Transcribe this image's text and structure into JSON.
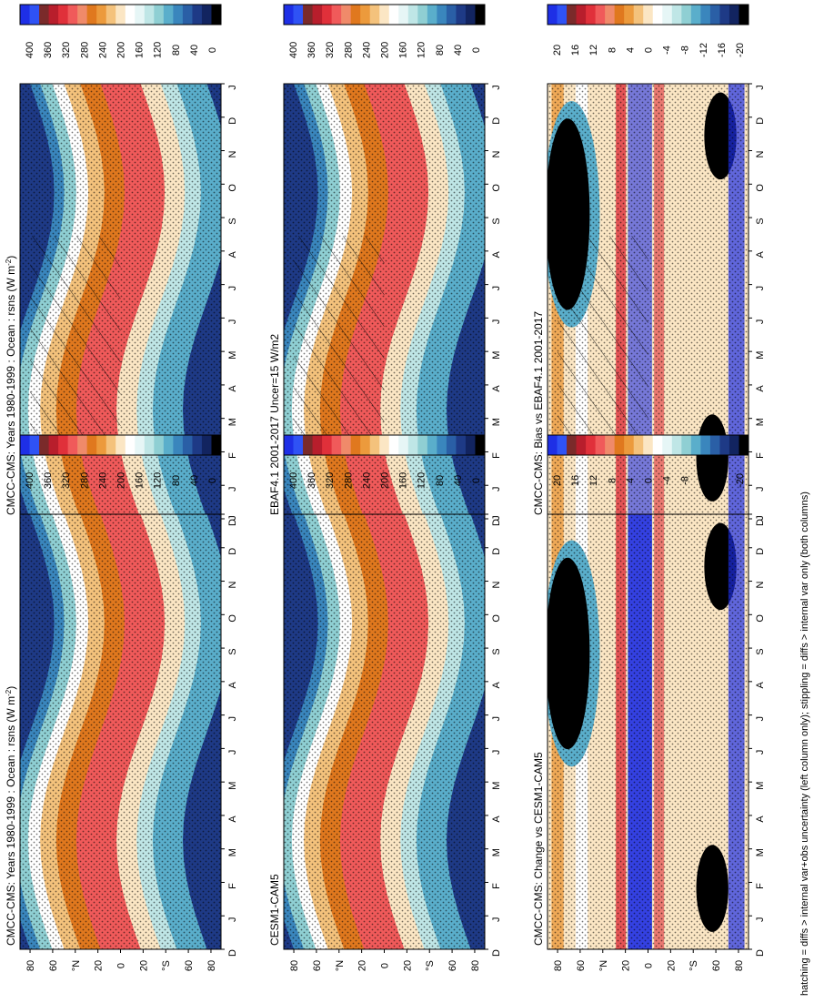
{
  "footnote": "hatching = diffs > internal var+obs uncertainty (left column only); stippling = diffs > internal var only (both columns)",
  "months": [
    "D",
    "J",
    "F",
    "M",
    "A",
    "M",
    "J",
    "J",
    "A",
    "S",
    "O",
    "N",
    "D",
    "J"
  ],
  "lat_ticks": [
    "80",
    "60",
    "°N",
    "20",
    "0",
    "20",
    "°S",
    "60",
    "80"
  ],
  "colorbars": {
    "absolute": {
      "labels": [
        "400",
        "360",
        "320",
        "280",
        "240",
        "200",
        "160",
        "120",
        "80",
        "40",
        "0"
      ],
      "colors": [
        "#1e2fe6",
        "#2f52f5",
        "#7a2a2a",
        "#b81e2c",
        "#e0303a",
        "#f05a5a",
        "#f08a6a",
        "#e0781e",
        "#ec9a3c",
        "#f4c27c",
        "#fbe6c4",
        "#ffffff",
        "#e6f6f6",
        "#bfe6e6",
        "#8fcfd3",
        "#5aaecb",
        "#3a86bd",
        "#2a5fa6",
        "#1e3a86",
        "#122460",
        "#000000"
      ]
    },
    "difference": {
      "labels": [
        "20",
        "16",
        "12",
        "8",
        "4",
        "0",
        "-4",
        "-8",
        "-12",
        "-16",
        "-20"
      ],
      "colors": [
        "#1e2fe6",
        "#2f52f5",
        "#7a2a2a",
        "#b81e2c",
        "#e0303a",
        "#f05a5a",
        "#f08a6a",
        "#e0781e",
        "#ec9a3c",
        "#f4c27c",
        "#fbe6c4",
        "#ffffff",
        "#e6f6f6",
        "#bfe6e6",
        "#8fcfd3",
        "#5aaecb",
        "#3a86bd",
        "#2a5fa6",
        "#1e3a86",
        "#122460",
        "#000000"
      ]
    }
  },
  "chart_data": [
    {
      "type": "heatmap",
      "title": "CMCC-CMS: Years 1980-1999 : Ocean : rsns (W m",
      "title_sup": "-2",
      "title_end": ")",
      "x": "month",
      "y": "latitude",
      "colorbar": "absolute",
      "hatching": true,
      "stippling": true
    },
    {
      "type": "heatmap",
      "title": "CMCC-CMS: Years 1980-1999 : Ocean : rsns (W m",
      "title_sup": "-2",
      "title_end": ")",
      "x": "month",
      "y": "latitude",
      "colorbar": "absolute",
      "hatching": false,
      "stippling": true
    },
    {
      "type": "heatmap",
      "title": "EBAF4.1 2001-2017 Uncer=15 W/m2",
      "x": "month",
      "y": "latitude",
      "colorbar": "absolute",
      "hatching": true,
      "stippling": true
    },
    {
      "type": "heatmap",
      "title": "CESM1-CAM5",
      "x": "month",
      "y": "latitude",
      "colorbar": "absolute",
      "hatching": false,
      "stippling": true
    },
    {
      "type": "heatmap",
      "title": "CMCC-CMS: Bias vs EBAF4.1 2001-2017",
      "x": "month",
      "y": "latitude",
      "colorbar": "difference",
      "hatching": true,
      "stippling": true
    },
    {
      "type": "heatmap",
      "title": "CMCC-CMS: Change vs CESM1-CAM5",
      "x": "month",
      "y": "latitude",
      "colorbar": "difference",
      "hatching": false,
      "stippling": true
    }
  ]
}
